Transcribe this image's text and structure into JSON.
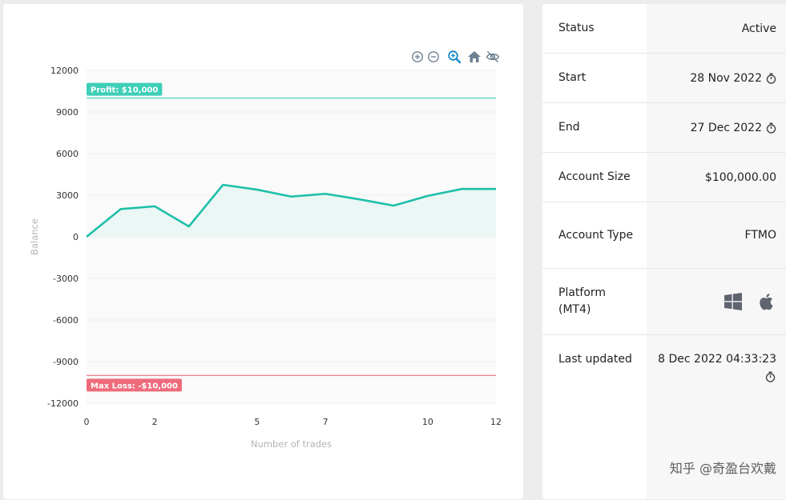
{
  "chart_data": {
    "type": "area",
    "xlabel": "Number of trades",
    "ylabel": "Balance",
    "xlim": [
      0,
      12
    ],
    "ylim": [
      -12000,
      12000
    ],
    "x_ticks": [
      "0",
      "2",
      "5",
      "7",
      "10",
      "12"
    ],
    "x_tick_values": [
      0,
      2,
      5,
      7,
      10,
      12
    ],
    "y_ticks": [
      "12000",
      "9000",
      "6000",
      "3000",
      "0",
      "-3000",
      "-6000",
      "-9000",
      "-12000"
    ],
    "y_tick_values": [
      12000,
      9000,
      6000,
      3000,
      0,
      -3000,
      -6000,
      -9000,
      -12000
    ],
    "x": [
      0,
      1,
      2,
      3,
      4,
      5,
      6,
      7,
      8,
      9,
      10,
      11,
      12
    ],
    "values": [
      0,
      2000,
      2200,
      750,
      3750,
      3400,
      2900,
      3100,
      2700,
      2250,
      2950,
      3450,
      3450
    ],
    "thresholds": [
      {
        "label": "Profit: $10,000",
        "value": 10000,
        "color": "#3ecfb8"
      },
      {
        "label": "Max Loss: -$10,000",
        "value": -10000,
        "color": "#ef6b7b"
      }
    ],
    "line_color": "#1fbfa9",
    "fill_color": "#e6f6f3",
    "grid": true
  },
  "toolbar": {
    "icons": [
      "zoom-in-icon",
      "zoom-out-icon",
      "zoom-select-icon",
      "reset-home-icon",
      "toggle-visibility-icon"
    ]
  },
  "info": {
    "rows": [
      {
        "label": "Status",
        "value": "Active"
      },
      {
        "label": "Start",
        "value": "28 Nov 2022"
      },
      {
        "label": "End",
        "value": "27 Dec 2022"
      },
      {
        "label": "Account Size",
        "value": "$100,000.00"
      },
      {
        "label": "Account Type",
        "value": "FTMO"
      },
      {
        "label": "Platform (MT4)",
        "icons": [
          "windows-icon",
          "apple-icon"
        ]
      },
      {
        "label": "Last updated",
        "value": "8 Dec 2022 04:33:23"
      }
    ]
  },
  "watermark": "知乎 @奇盈台欢戴"
}
